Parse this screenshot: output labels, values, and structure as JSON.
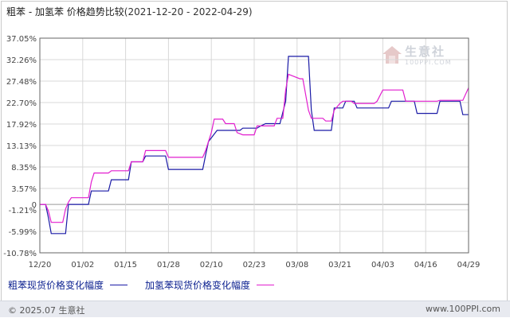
{
  "header": {
    "title": "粗苯 - 加氢苯 价格趋势比较",
    "date_range": "(2021-12-20 - 2022-04-29)"
  },
  "watermark": {
    "brand": "生意社",
    "sub": "100PPI.COM"
  },
  "legend": {
    "series1": "粗苯现货价格变化幅度",
    "series2": "加氢苯现货价格变化幅度"
  },
  "footer": {
    "copyright": "© 2025.07 生意社",
    "url": "www.100PPI.com"
  },
  "colors": {
    "series1": "#1a1aa6",
    "series2": "#e21fcf",
    "grid": "#d8d8d8",
    "axis": "#666666"
  },
  "chart_data": {
    "type": "line",
    "x_tick_labels": [
      "12/20",
      "01/02",
      "01/15",
      "01/28",
      "02/10",
      "02/23",
      "03/08",
      "03/21",
      "04/03",
      "04/16",
      "04/29"
    ],
    "y_tick_labels": [
      "37.05%",
      "32.26%",
      "27.48%",
      "22.70%",
      "17.92%",
      "13.13%",
      "8.35%",
      "3.57%",
      "-1.21%",
      "-5.99%",
      "-10.78%"
    ],
    "ylim": [
      -10.78,
      37.05
    ],
    "zero_label": "0",
    "x_days_total": 130,
    "series": [
      {
        "name": "粗苯现货价格变化幅度",
        "color": "#1a1aa6",
        "points": [
          [
            0,
            0
          ],
          [
            2,
            0
          ],
          [
            3,
            -3
          ],
          [
            4,
            -6.5
          ],
          [
            9,
            -6.5
          ],
          [
            10,
            0
          ],
          [
            17,
            0
          ],
          [
            18,
            3
          ],
          [
            24,
            3
          ],
          [
            25,
            5.5
          ],
          [
            31,
            5.5
          ],
          [
            32,
            9.5
          ],
          [
            36,
            9.5
          ],
          [
            37,
            10.8
          ],
          [
            44,
            10.8
          ],
          [
            45,
            7.8
          ],
          [
            57,
            7.8
          ],
          [
            58,
            11
          ],
          [
            59,
            14
          ],
          [
            62,
            16.5
          ],
          [
            70,
            16.5
          ],
          [
            71,
            17
          ],
          [
            76,
            17
          ],
          [
            77,
            17.4
          ],
          [
            79,
            18
          ],
          [
            84,
            18
          ],
          [
            86,
            23
          ],
          [
            87,
            33
          ],
          [
            94,
            33
          ],
          [
            95,
            21
          ],
          [
            96,
            16.5
          ],
          [
            102,
            16.5
          ],
          [
            103,
            21.5
          ],
          [
            106,
            21.5
          ],
          [
            107,
            23
          ],
          [
            110,
            23
          ],
          [
            111,
            21.5
          ],
          [
            122,
            21.5
          ],
          [
            123,
            23
          ],
          [
            131,
            23
          ],
          [
            132,
            20.3
          ],
          [
            139,
            20.3
          ],
          [
            140,
            23
          ],
          [
            147,
            23
          ],
          [
            148,
            20
          ],
          [
            150,
            20
          ]
        ]
      },
      {
        "name": "加氢苯现货价格变化幅度",
        "color": "#e21fcf",
        "points": [
          [
            0,
            0
          ],
          [
            2,
            0
          ],
          [
            3,
            -1.5
          ],
          [
            4,
            -4
          ],
          [
            8,
            -4
          ],
          [
            9,
            -1
          ],
          [
            10,
            0.5
          ],
          [
            11,
            1.5
          ],
          [
            17,
            1.5
          ],
          [
            18,
            5
          ],
          [
            19,
            7
          ],
          [
            24,
            7
          ],
          [
            25,
            7.5
          ],
          [
            31,
            7.5
          ],
          [
            32,
            9.5
          ],
          [
            36,
            9.5
          ],
          [
            37,
            12
          ],
          [
            44,
            12
          ],
          [
            45,
            10.5
          ],
          [
            57,
            10.5
          ],
          [
            58,
            12
          ],
          [
            60,
            16
          ],
          [
            61,
            19
          ],
          [
            64,
            19
          ],
          [
            65,
            18
          ],
          [
            68,
            18
          ],
          [
            69,
            16
          ],
          [
            71,
            15.5
          ],
          [
            75,
            15.5
          ],
          [
            76,
            17.5
          ],
          [
            82,
            17.5
          ],
          [
            83,
            19.2
          ],
          [
            85,
            19.2
          ],
          [
            86,
            25.5
          ],
          [
            87,
            29
          ],
          [
            91,
            28
          ],
          [
            92,
            28
          ],
          [
            94,
            21
          ],
          [
            95,
            19.2
          ],
          [
            99,
            19.2
          ],
          [
            100,
            18.6
          ],
          [
            102,
            18.6
          ],
          [
            103,
            21
          ],
          [
            105,
            22.5
          ],
          [
            106,
            23
          ],
          [
            109,
            23
          ],
          [
            110,
            22.5
          ],
          [
            117,
            22.5
          ],
          [
            118,
            23
          ],
          [
            120,
            25.5
          ],
          [
            127,
            25.5
          ],
          [
            128,
            23
          ],
          [
            139,
            23
          ],
          [
            140,
            23.2
          ],
          [
            148,
            23.2
          ],
          [
            150,
            26
          ]
        ]
      }
    ],
    "grid": true,
    "legend_position": "bottom-left"
  }
}
